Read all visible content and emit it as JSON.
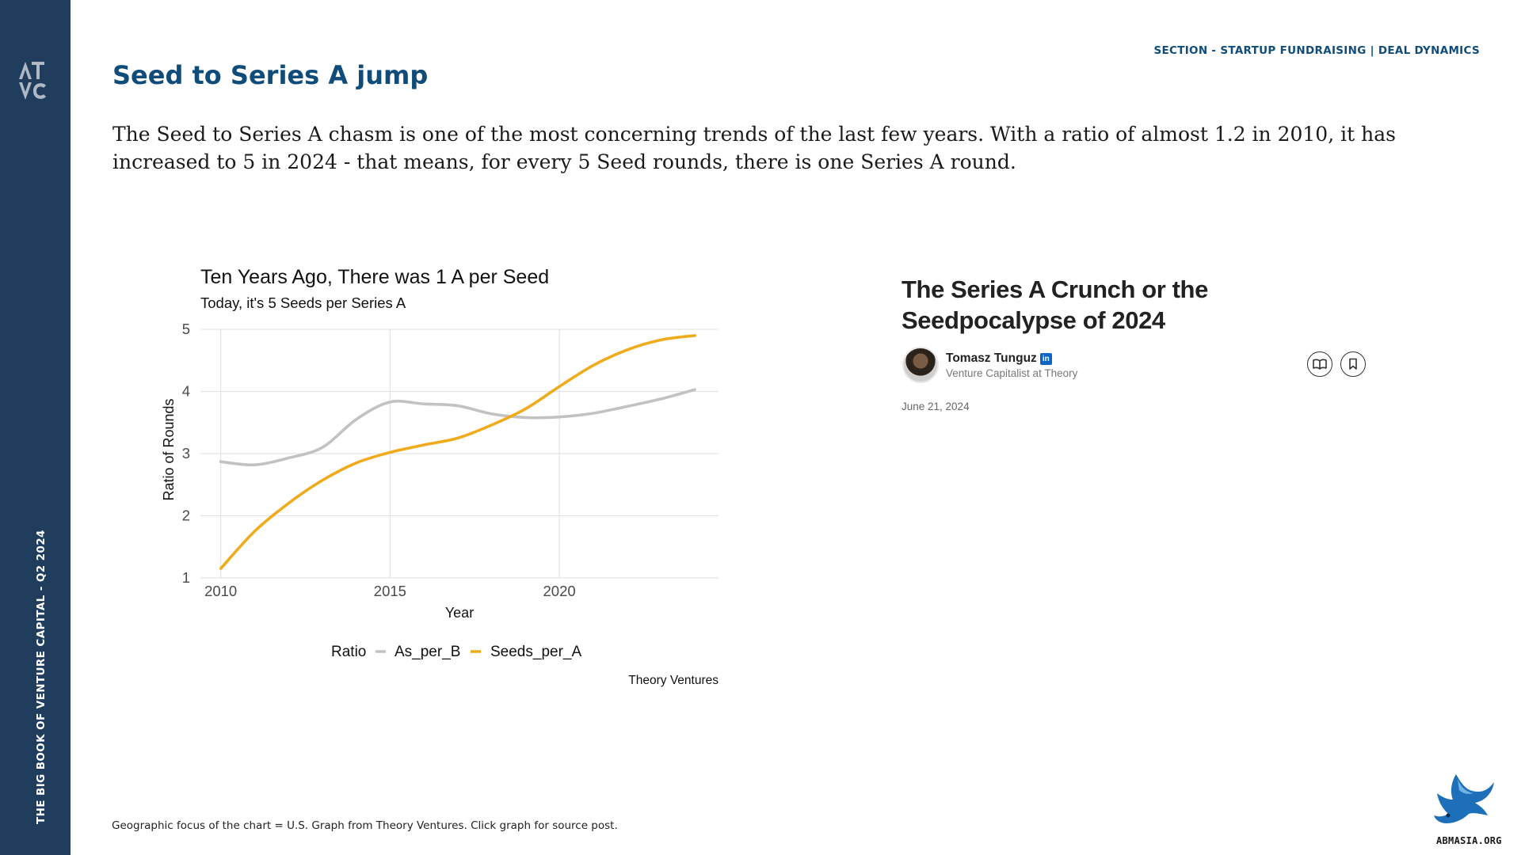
{
  "sidebar": {
    "logo_text": "ATVC",
    "vertical_label": "THE BIG BOOK OF VENTURE CAPITAL - Q2 2024"
  },
  "header": {
    "section_label": "SECTION - STARTUP FUNDRAISING | DEAL DYNAMICS",
    "title": "Seed to Series A jump",
    "intro": "The Seed to Series A chasm is one of the most concerning trends of the last few years. With a ratio of almost 1.2 in 2010, it has increased to 5 in 2024 - that means, for every 5 Seed rounds, there is one Series A round."
  },
  "chart_data": {
    "type": "line",
    "title": "Ten Years Ago, There was 1 A per Seed",
    "subtitle": "Today, it's 5 Seeds per Series A",
    "xlabel": "Year",
    "ylabel": "Ratio of Rounds",
    "xlim": [
      2009.4,
      2024.7
    ],
    "ylim": [
      1,
      5
    ],
    "x_ticks": [
      "2010",
      "2015",
      "2020"
    ],
    "y_ticks": [
      "1",
      "2",
      "3",
      "4",
      "5"
    ],
    "grid": true,
    "legend_position": "bottom",
    "legend_title": "Ratio",
    "caption": "Theory Ventures",
    "series": [
      {
        "name": "As_per_B",
        "color": "#c2c2c2",
        "x": [
          2010,
          2011,
          2012,
          2013,
          2014,
          2015,
          2016,
          2017,
          2018,
          2019,
          2020,
          2021,
          2022,
          2023,
          2024
        ],
        "values": [
          2.87,
          2.82,
          2.93,
          3.1,
          3.55,
          3.83,
          3.8,
          3.77,
          3.64,
          3.58,
          3.59,
          3.65,
          3.76,
          3.88,
          4.03
        ]
      },
      {
        "name": "Seeds_per_A",
        "color": "#f0ab1c",
        "x": [
          2010,
          2011,
          2012,
          2013,
          2014,
          2015,
          2016,
          2017,
          2018,
          2019,
          2020,
          2021,
          2022,
          2023,
          2024
        ],
        "values": [
          1.15,
          1.75,
          2.2,
          2.57,
          2.85,
          3.02,
          3.14,
          3.25,
          3.46,
          3.72,
          4.08,
          4.42,
          4.67,
          4.83,
          4.9
        ]
      }
    ]
  },
  "article": {
    "title": "The Series A Crunch or the Seedpocalypse of 2024",
    "author": "Tomasz Tunguz",
    "linkedin_label": "in",
    "role": "Venture Capitalist at Theory",
    "date": "June 21, 2024"
  },
  "footer": {
    "note": "Geographic focus of the chart = U.S. Graph from Theory Ventures. Click graph for source post.",
    "site": "ABMASIA.ORG"
  },
  "colors": {
    "sidebar": "#203d5e",
    "title_blue": "#0f4c7a",
    "seeds_line": "#f0ab1c",
    "as_line": "#c2c2c2"
  }
}
